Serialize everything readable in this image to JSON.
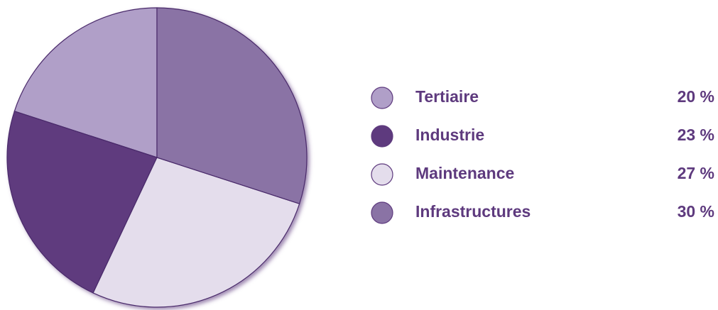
{
  "chart_data": {
    "type": "pie",
    "categories": [
      "Tertiaire",
      "Industrie",
      "Maintenance",
      "Infrastructures"
    ],
    "values": [
      20,
      23,
      27,
      30
    ],
    "value_labels": [
      "20 %",
      "23 %",
      "27 %",
      "30 %"
    ],
    "colors": [
      "#b09fc8",
      "#5e3a7e",
      "#e4ddec",
      "#8a73a5"
    ]
  }
}
